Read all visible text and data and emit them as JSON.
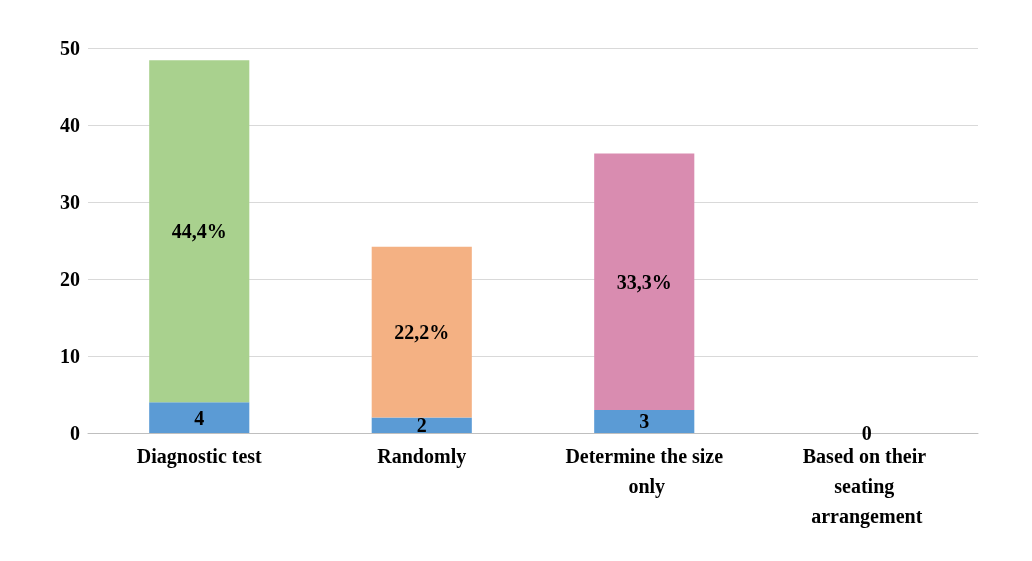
{
  "chart_data": {
    "type": "bar",
    "stacked": true,
    "categories": [
      "Diagnostic test",
      "Randomly",
      "Determine the size only",
      "Based on their seating arrangement"
    ],
    "series": [
      {
        "color": "#5b9bd5",
        "values": [
          4,
          2,
          3,
          0
        ],
        "value_labels": [
          "4",
          "2",
          "3",
          "0"
        ]
      },
      {
        "colors": [
          "#a9d18e",
          "#f4b183",
          "#d98cb0",
          "#c00000"
        ],
        "values": [
          44.4,
          22.2,
          33.3,
          0
        ],
        "value_labels": [
          "44,4%",
          "22,2%",
          "33,3%",
          null
        ]
      }
    ],
    "ylim": [
      0,
      50
    ],
    "yticks": [
      0,
      10,
      20,
      30,
      40,
      50
    ],
    "grid": "y"
  }
}
